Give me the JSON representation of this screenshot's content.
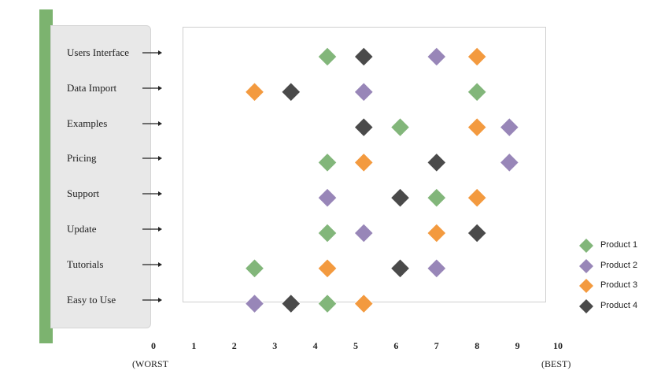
{
  "chart_data": {
    "type": "scatter",
    "categories": [
      "Users Interface",
      "Data Import",
      "Examples",
      "Pricing",
      "Support",
      "Update",
      "Tutorials",
      "Easy to Use"
    ],
    "x_ticks": [
      "0",
      "1",
      "2",
      "3",
      "4",
      "5",
      "6",
      "7",
      "8",
      "9",
      "10"
    ],
    "xlim": [
      0,
      10
    ],
    "x_start_label": "(WORST",
    "x_end_label": "(BEST)",
    "legend_position": "right",
    "series": [
      {
        "name": "Product 1",
        "color": "#82b67a",
        "values": [
          4.3,
          8,
          6.1,
          4.3,
          7,
          4.3,
          2.5,
          4.3
        ]
      },
      {
        "name": "Product 2",
        "color": "#9886b8",
        "values": [
          7,
          5.2,
          8.8,
          8.8,
          4.3,
          5.2,
          7,
          2.5
        ]
      },
      {
        "name": "Product 3",
        "color": "#f39a3f",
        "values": [
          8,
          2.5,
          8,
          5.2,
          8,
          7,
          4.3,
          5.2
        ]
      },
      {
        "name": "Product 4",
        "color": "#4a4a4a",
        "values": [
          5.2,
          3.4,
          5.2,
          7,
          6.1,
          8,
          6.1,
          3.4
        ]
      }
    ]
  }
}
